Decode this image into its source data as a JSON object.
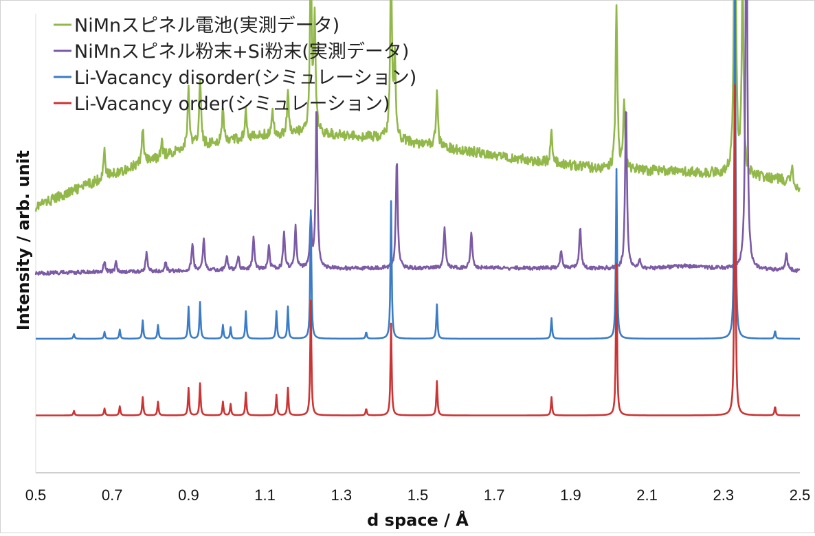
{
  "chart_data": {
    "type": "line",
    "title": "",
    "xlabel": "d space / Å",
    "ylabel": "Intensity / arb. unit",
    "xlim": [
      0.5,
      2.5
    ],
    "x_ticks": [
      "0.5",
      "0.7",
      "0.9",
      "1.1",
      "1.3",
      "1.5",
      "1.7",
      "1.9",
      "2.1",
      "2.3",
      "2.5"
    ],
    "y_ticks_shown": false,
    "grid": false,
    "legend_position": "top-left",
    "series": [
      {
        "name": "NiMnスピネル電池(実測データ)",
        "color": "#92b84a",
        "baseline": [
          [
            0.5,
            0.58
          ],
          [
            0.7,
            0.65
          ],
          [
            0.9,
            0.71
          ],
          [
            1.1,
            0.735
          ],
          [
            1.2,
            0.74
          ],
          [
            1.4,
            0.73
          ],
          [
            1.6,
            0.705
          ],
          [
            1.8,
            0.68
          ],
          [
            1.95,
            0.665
          ],
          [
            2.05,
            0.66
          ],
          [
            2.3,
            0.652
          ],
          [
            2.45,
            0.64
          ],
          [
            2.5,
            0.62
          ]
        ],
        "peaks": [
          [
            0.68,
            0.06
          ],
          [
            0.78,
            0.08
          ],
          [
            0.83,
            0.03
          ],
          [
            0.9,
            0.13
          ],
          [
            0.93,
            0.15
          ],
          [
            0.99,
            0.07
          ],
          [
            1.05,
            0.07
          ],
          [
            1.12,
            0.05
          ],
          [
            1.16,
            0.09
          ],
          [
            1.22,
            0.37
          ],
          [
            1.23,
            0.24
          ],
          [
            1.43,
            0.37
          ],
          [
            1.44,
            0.17
          ],
          [
            1.55,
            0.12
          ],
          [
            1.85,
            0.07
          ],
          [
            2.02,
            0.36
          ],
          [
            2.04,
            0.15
          ],
          [
            2.33,
            0.82
          ],
          [
            2.35,
            0.43
          ],
          [
            2.48,
            0.04
          ]
        ]
      },
      {
        "name": "NiMnスピネル粉末+Si粉末(実測データ)",
        "color": "#7b5aa6",
        "baseline": [
          [
            0.5,
            0.435
          ],
          [
            0.9,
            0.44
          ],
          [
            1.2,
            0.445
          ],
          [
            1.5,
            0.446
          ],
          [
            1.8,
            0.446
          ],
          [
            2.1,
            0.445
          ],
          [
            2.2,
            0.45
          ],
          [
            2.3,
            0.445
          ],
          [
            2.5,
            0.44
          ]
        ],
        "peaks": [
          [
            0.68,
            0.025
          ],
          [
            0.71,
            0.02
          ],
          [
            0.79,
            0.04
          ],
          [
            0.84,
            0.02
          ],
          [
            0.91,
            0.06
          ],
          [
            0.94,
            0.07
          ],
          [
            1.0,
            0.03
          ],
          [
            1.03,
            0.03
          ],
          [
            1.07,
            0.07
          ],
          [
            1.11,
            0.05
          ],
          [
            1.15,
            0.08
          ],
          [
            1.18,
            0.09
          ],
          [
            1.22,
            0.1
          ],
          [
            1.235,
            0.36
          ],
          [
            1.445,
            0.24
          ],
          [
            1.57,
            0.09
          ],
          [
            1.64,
            0.08
          ],
          [
            1.875,
            0.04
          ],
          [
            1.925,
            0.09
          ],
          [
            2.045,
            0.36
          ],
          [
            2.08,
            0.02
          ],
          [
            2.36,
            0.9
          ],
          [
            2.465,
            0.04
          ]
        ]
      },
      {
        "name": "Li-Vacancy disorder(シミュレーション)",
        "color": "#3a7cc6",
        "baseline": [
          [
            0.5,
            0.292
          ],
          [
            2.5,
            0.292
          ]
        ],
        "peaks": [
          [
            0.6,
            0.01
          ],
          [
            0.68,
            0.015
          ],
          [
            0.72,
            0.02
          ],
          [
            0.78,
            0.04
          ],
          [
            0.82,
            0.03
          ],
          [
            0.9,
            0.07
          ],
          [
            0.93,
            0.08
          ],
          [
            0.99,
            0.03
          ],
          [
            1.01,
            0.025
          ],
          [
            1.05,
            0.06
          ],
          [
            1.13,
            0.06
          ],
          [
            1.16,
            0.07
          ],
          [
            1.22,
            0.28
          ],
          [
            1.365,
            0.015
          ],
          [
            1.43,
            0.3
          ],
          [
            1.55,
            0.075
          ],
          [
            1.85,
            0.045
          ],
          [
            2.02,
            0.37
          ],
          [
            2.33,
            0.78
          ],
          [
            2.435,
            0.018
          ]
        ]
      },
      {
        "name": "Li-Vacancy order(シミュレーション)",
        "color": "#cc3333",
        "baseline": [
          [
            0.5,
            0.125
          ],
          [
            2.5,
            0.125
          ]
        ],
        "peaks": [
          [
            0.6,
            0.01
          ],
          [
            0.68,
            0.015
          ],
          [
            0.72,
            0.02
          ],
          [
            0.78,
            0.04
          ],
          [
            0.82,
            0.03
          ],
          [
            0.9,
            0.06
          ],
          [
            0.93,
            0.07
          ],
          [
            0.99,
            0.03
          ],
          [
            1.01,
            0.025
          ],
          [
            1.05,
            0.05
          ],
          [
            1.13,
            0.045
          ],
          [
            1.16,
            0.06
          ],
          [
            1.22,
            0.25
          ],
          [
            1.365,
            0.015
          ],
          [
            1.43,
            0.2
          ],
          [
            1.55,
            0.075
          ],
          [
            1.85,
            0.04
          ],
          [
            2.02,
            0.33
          ],
          [
            2.33,
            0.72
          ],
          [
            2.435,
            0.02
          ]
        ]
      }
    ]
  }
}
